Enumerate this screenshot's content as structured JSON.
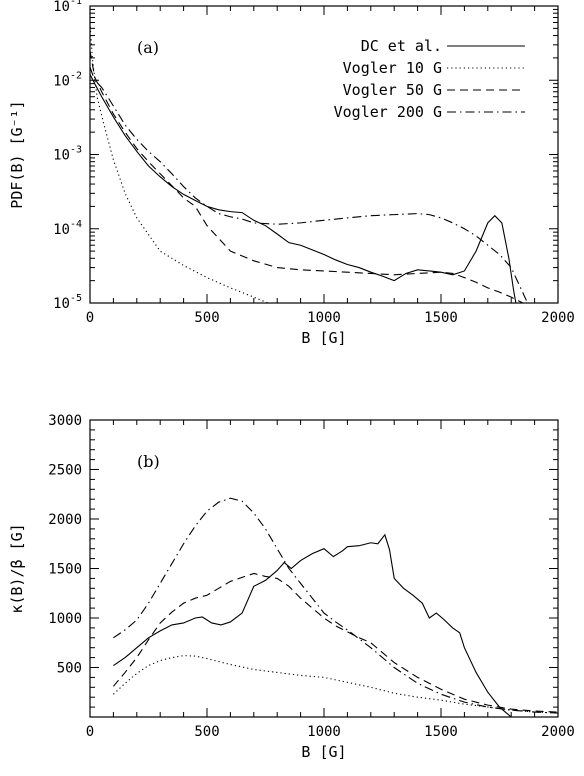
{
  "chart_data": [
    {
      "type": "line",
      "panel_label": "(a)",
      "xlabel": "B [G]",
      "ylabel": "PDF(B) [G⁻¹]",
      "xlim": [
        0,
        2000
      ],
      "ylim": [
        1e-05,
        0.1
      ],
      "yscale": "log",
      "xticks": [
        0,
        500,
        1000,
        1500,
        2000
      ],
      "yticks": [
        1e-05,
        0.0001,
        0.001,
        0.01,
        0.1
      ],
      "ytick_labels": [
        {
          "base": "10",
          "exp": "-5"
        },
        {
          "base": "10",
          "exp": "-4"
        },
        {
          "base": "10",
          "exp": "-3"
        },
        {
          "base": "10",
          "exp": "-2"
        },
        {
          "base": "10",
          "exp": "-1"
        }
      ],
      "legend_position": "top-right",
      "series": [
        {
          "name": "DC et al.",
          "dash": "solid",
          "x": [
            0,
            20,
            50,
            100,
            150,
            200,
            250,
            300,
            350,
            400,
            450,
            500,
            550,
            600,
            650,
            700,
            750,
            800,
            850,
            900,
            950,
            1000,
            1050,
            1100,
            1150,
            1200,
            1250,
            1300,
            1350,
            1400,
            1450,
            1500,
            1550,
            1600,
            1650,
            1700,
            1730,
            1760,
            1790,
            1810,
            1820
          ],
          "y": [
            0.012,
            0.009,
            0.006,
            0.0032,
            0.0018,
            0.0011,
            0.0007,
            0.0005,
            0.00037,
            0.00029,
            0.00024,
            0.0002,
            0.00018,
            0.00017,
            0.000165,
            0.00013,
            0.00011,
            8.5e-05,
            6.5e-05,
            6e-05,
            5.2e-05,
            4.5e-05,
            3.8e-05,
            3.3e-05,
            3e-05,
            2.6e-05,
            2.3e-05,
            2e-05,
            2.5e-05,
            2.8e-05,
            2.7e-05,
            2.6e-05,
            2.4e-05,
            2.7e-05,
            5e-05,
            0.00012,
            0.00015,
            0.00012,
            4e-05,
            1.5e-05,
            1e-05
          ]
        },
        {
          "name": "Vogler 10 G",
          "dash": "dotted",
          "x": [
            0,
            10,
            30,
            60,
            100,
            150,
            200,
            300,
            400,
            500,
            600,
            700,
            760
          ],
          "y": [
            0.06,
            0.02,
            0.006,
            0.0025,
            0.00085,
            0.0003,
            0.00014,
            5e-05,
            3.2e-05,
            2.2e-05,
            1.6e-05,
            1.2e-05,
            1e-05
          ]
        },
        {
          "name": "Vogler 50 G",
          "dash": "dashed",
          "x": [
            0,
            20,
            50,
            100,
            150,
            200,
            250,
            300,
            350,
            400,
            450,
            500,
            600,
            700,
            800,
            900,
            1000,
            1100,
            1200,
            1300,
            1400,
            1500,
            1550,
            1600,
            1650,
            1700,
            1750,
            1800,
            1850,
            1880
          ],
          "y": [
            0.025,
            0.011,
            0.007,
            0.0035,
            0.002,
            0.0012,
            0.0008,
            0.00055,
            0.00038,
            0.00026,
            0.0002,
            0.00011,
            5e-05,
            3.7e-05,
            3e-05,
            2.8e-05,
            2.7e-05,
            2.6e-05,
            2.5e-05,
            2.4e-05,
            2.5e-05,
            2.6e-05,
            2.5e-05,
            2.2e-05,
            1.9e-05,
            1.6e-05,
            1.4e-05,
            1.2e-05,
            1e-05,
            9e-06
          ]
        },
        {
          "name": "Vogler 200 G",
          "dash": "dashdot",
          "x": [
            0,
            20,
            50,
            100,
            150,
            200,
            250,
            300,
            350,
            400,
            450,
            500,
            550,
            600,
            650,
            700,
            800,
            900,
            1000,
            1100,
            1200,
            1300,
            1400,
            1450,
            1500,
            1550,
            1600,
            1650,
            1700,
            1750,
            1800,
            1840,
            1870
          ],
          "y": [
            0.015,
            0.01,
            0.008,
            0.0045,
            0.0025,
            0.0016,
            0.0011,
            0.0008,
            0.00055,
            0.00037,
            0.00026,
            0.0002,
            0.00016,
            0.000145,
            0.000135,
            0.00012,
            0.000115,
            0.00012,
            0.00013,
            0.00014,
            0.00015,
            0.000155,
            0.00016,
            0.000155,
            0.00014,
            0.00012,
            0.0001,
            8e-05,
            6e-05,
            4.5e-05,
            3e-05,
            1.6e-05,
            1e-05
          ]
        }
      ]
    },
    {
      "type": "line",
      "panel_label": "(b)",
      "xlabel": "B [G]",
      "ylabel": "κ(B)/β [G]",
      "xlim": [
        0,
        2000
      ],
      "ylim": [
        0,
        3000
      ],
      "xticks": [
        0,
        500,
        1000,
        1500,
        2000
      ],
      "yticks": [
        500,
        1000,
        1500,
        2000,
        2500,
        3000
      ],
      "series": [
        {
          "name": "DC et al.",
          "dash": "solid",
          "x": [
            100,
            150,
            200,
            250,
            300,
            350,
            400,
            450,
            480,
            520,
            560,
            600,
            650,
            700,
            750,
            800,
            830,
            860,
            900,
            950,
            1000,
            1040,
            1080,
            1100,
            1150,
            1200,
            1230,
            1260,
            1280,
            1300,
            1340,
            1380,
            1420,
            1450,
            1480,
            1510,
            1550,
            1580,
            1600,
            1650,
            1700,
            1750,
            1780,
            1800
          ],
          "y": [
            520,
            600,
            700,
            800,
            870,
            930,
            950,
            1000,
            1010,
            950,
            930,
            960,
            1050,
            1320,
            1380,
            1480,
            1560,
            1500,
            1580,
            1650,
            1700,
            1620,
            1680,
            1720,
            1730,
            1760,
            1750,
            1840,
            1690,
            1400,
            1300,
            1230,
            1150,
            1000,
            1050,
            990,
            900,
            850,
            700,
            450,
            250,
            100,
            40,
            0
          ]
        },
        {
          "name": "Vogler 10 G",
          "dash": "dotted",
          "x": [
            100,
            150,
            200,
            250,
            300,
            350,
            400,
            450,
            500,
            600,
            700,
            800,
            900,
            1000,
            1100,
            1200,
            1300,
            1400,
            1500,
            1600,
            1700,
            1800,
            1900,
            2000
          ],
          "y": [
            230,
            340,
            440,
            520,
            570,
            600,
            620,
            615,
            590,
            530,
            480,
            450,
            420,
            400,
            350,
            300,
            240,
            200,
            170,
            130,
            100,
            70,
            50,
            40
          ]
        },
        {
          "name": "Vogler 50 G",
          "dash": "dashed",
          "x": [
            100,
            150,
            200,
            250,
            300,
            350,
            400,
            450,
            500,
            550,
            600,
            650,
            700,
            750,
            800,
            850,
            900,
            950,
            1000,
            1050,
            1100,
            1150,
            1200,
            1300,
            1400,
            1500,
            1600,
            1700,
            1800,
            1900,
            2000
          ],
          "y": [
            310,
            450,
            600,
            780,
            950,
            1060,
            1150,
            1200,
            1230,
            1300,
            1370,
            1410,
            1450,
            1420,
            1400,
            1320,
            1200,
            1100,
            1000,
            920,
            860,
            800,
            750,
            550,
            400,
            280,
            180,
            120,
            80,
            60,
            50
          ]
        },
        {
          "name": "Vogler 200 G",
          "dash": "dashdot",
          "x": [
            100,
            150,
            200,
            250,
            300,
            350,
            400,
            450,
            500,
            550,
            600,
            650,
            700,
            750,
            800,
            850,
            900,
            950,
            1000,
            1050,
            1100,
            1150,
            1200,
            1300,
            1400,
            1500,
            1600,
            1700,
            1800,
            1900,
            2000
          ],
          "y": [
            800,
            880,
            980,
            1150,
            1350,
            1550,
            1750,
            1930,
            2080,
            2170,
            2210,
            2180,
            2060,
            1900,
            1700,
            1500,
            1350,
            1200,
            1050,
            960,
            880,
            790,
            700,
            500,
            340,
            230,
            150,
            100,
            70,
            50,
            40
          ]
        }
      ]
    }
  ]
}
